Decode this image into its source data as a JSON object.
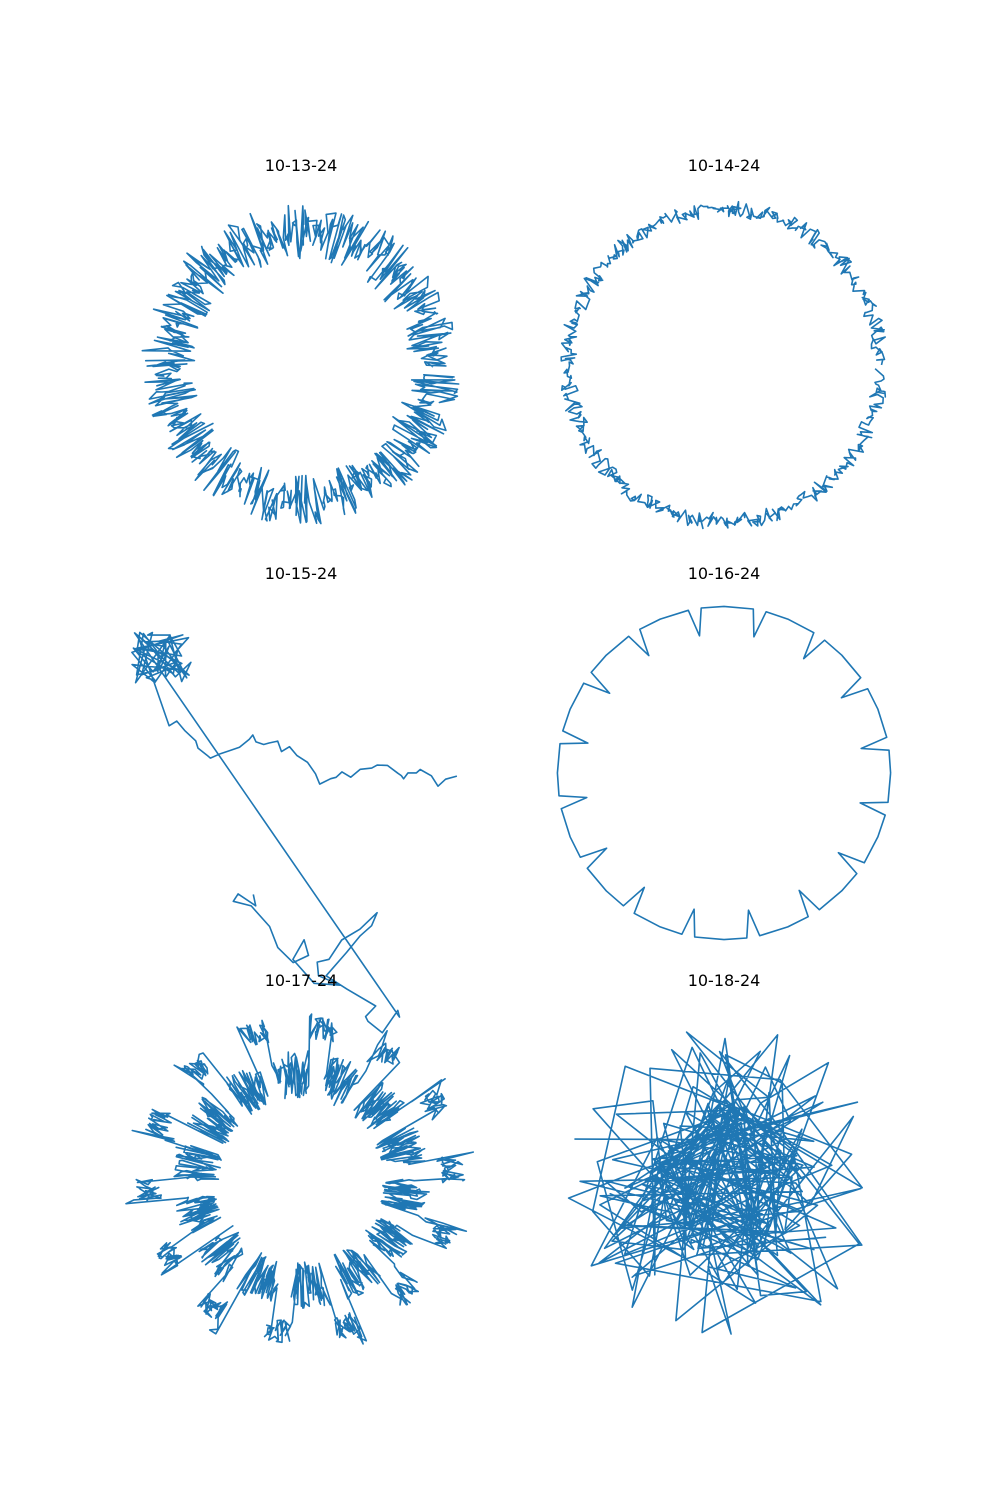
{
  "figure": {
    "line_color": "#1f77b4"
  },
  "chart_data": [
    {
      "type": "line",
      "title": "10-13-24",
      "axes_visible": false,
      "xlim": [
        -1.0,
        1.0
      ],
      "ylim": [
        -1.0,
        1.0
      ],
      "shape": {
        "kind": "ring_with_clusters",
        "radius": 0.78,
        "clusters": 18,
        "noise": 0.16,
        "segments": 900,
        "seed": 13
      }
    },
    {
      "type": "line",
      "title": "10-14-24",
      "axes_visible": false,
      "xlim": [
        -1.0,
        1.0
      ],
      "ylim": [
        -1.0,
        1.0
      ],
      "shape": {
        "kind": "thin_ring_with_clusters",
        "radius": 0.92,
        "clusters": 16,
        "noise": 0.05,
        "segments": 600,
        "seed": 14
      }
    },
    {
      "type": "line",
      "title": "10-15-24",
      "axes_visible": false,
      "xlim": [
        -1.0,
        1.0
      ],
      "ylim": [
        -1.0,
        1.0
      ],
      "shape": {
        "kind": "random_walk_path",
        "segments": 120,
        "seed": 15
      }
    },
    {
      "type": "line",
      "title": "10-16-24",
      "axes_visible": false,
      "xlim": [
        -1.0,
        1.0
      ],
      "ylim": [
        -1.0,
        1.0
      ],
      "shape": {
        "kind": "notched_circle",
        "radius": 0.98,
        "notches": 16,
        "notch_depth": 0.16
      }
    },
    {
      "type": "line",
      "title": "10-17-24",
      "axes_visible": false,
      "xlim": [
        -1.0,
        1.0
      ],
      "ylim": [
        -1.0,
        1.0
      ],
      "shape": {
        "kind": "ring_with_outer_clusters",
        "radius": 0.62,
        "clusters": 14,
        "cluster_radius": 0.9,
        "noise": 0.14,
        "segments": 1400,
        "seed": 17
      }
    },
    {
      "type": "line",
      "title": "10-18-24",
      "axes_visible": false,
      "xlim": [
        -1.0,
        1.0
      ],
      "ylim": [
        -1.0,
        1.0
      ],
      "shape": {
        "kind": "chaotic_star",
        "radius": 0.95,
        "clusters": 5,
        "cluster_radius": 0.35,
        "segments": 260,
        "seed": 18
      }
    }
  ]
}
